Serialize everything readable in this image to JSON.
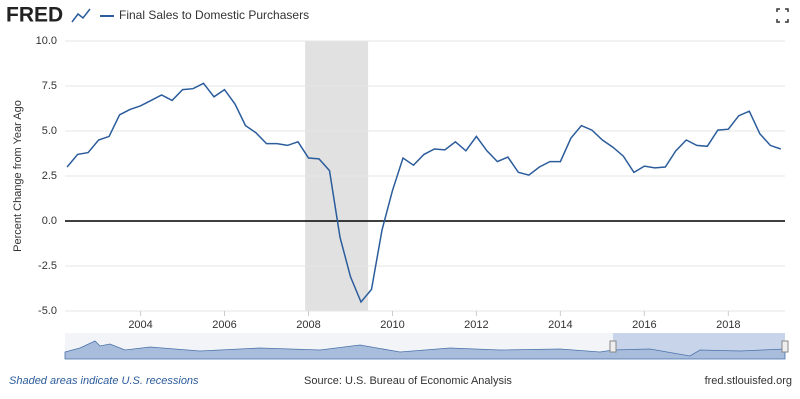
{
  "chart_data": {
    "type": "line",
    "logo": "FRED",
    "title": "Final Sales to Domestic Purchasers",
    "y_label": "Percent Change from Year Ago",
    "note": "Shaded areas indicate U.S. recessions",
    "source": "Source: U.S. Bureau of Economic Analysis",
    "site": "fred.stlouisfed.org",
    "xlim": [
      2002.2,
      2019.35
    ],
    "xticks": [
      2004,
      2006,
      2008,
      2010,
      2012,
      2014,
      2016,
      2018
    ],
    "ylim": [
      -5,
      10
    ],
    "yticks": [
      {
        "value": 10,
        "label": "10.0"
      },
      7.5,
      {
        "value": 5,
        "label": "5.0"
      },
      2.5,
      {
        "value": 0,
        "label": "0.0"
      },
      -2.5,
      {
        "value": -5,
        "label": "-5.0"
      }
    ],
    "grid": true,
    "recessions": [
      [
        2007.92,
        2009.42
      ]
    ],
    "x": [
      2002.25,
      2002.5,
      2002.75,
      2003,
      2003.25,
      2003.5,
      2003.75,
      2004,
      2004.25,
      2004.5,
      2004.75,
      2005,
      2005.25,
      2005.5,
      2005.75,
      2006,
      2006.25,
      2006.5,
      2006.75,
      2007,
      2007.25,
      2007.5,
      2007.75,
      2008,
      2008.25,
      2008.5,
      2008.75,
      2009,
      2009.25,
      2009.5,
      2009.75,
      2010,
      2010.25,
      2010.5,
      2010.75,
      2011,
      2011.25,
      2011.5,
      2011.75,
      2012,
      2012.25,
      2012.5,
      2012.75,
      2013,
      2013.25,
      2013.5,
      2013.75,
      2014,
      2014.25,
      2014.5,
      2014.75,
      2015,
      2015.25,
      2015.5,
      2015.75,
      2016,
      2016.25,
      2016.5,
      2016.75,
      2017,
      2017.25,
      2017.5,
      2017.75,
      2018,
      2018.25,
      2018.5,
      2018.75,
      2019,
      2019.25
    ],
    "series": [
      {
        "name": "Final Sales to Domestic Purchasers",
        "color": "#2b5c9b",
        "values": [
          3.0,
          3.7,
          3.8,
          4.5,
          4.7,
          5.9,
          6.2,
          6.4,
          6.7,
          7.0,
          6.7,
          7.3,
          7.35,
          7.65,
          6.9,
          7.3,
          6.5,
          5.3,
          4.9,
          4.3,
          4.3,
          4.2,
          4.4,
          3.5,
          3.45,
          2.8,
          -0.9,
          -3.1,
          -4.5,
          -3.8,
          -0.5,
          1.7,
          3.5,
          3.1,
          3.7,
          4.0,
          3.95,
          4.4,
          3.9,
          4.7,
          3.9,
          3.3,
          3.55,
          2.7,
          2.55,
          3.0,
          3.3,
          3.3,
          4.6,
          5.3,
          5.05,
          4.5,
          4.1,
          3.6,
          2.7,
          3.05,
          2.95,
          3.0,
          3.9,
          4.5,
          4.2,
          4.15,
          5.05,
          5.1,
          5.85,
          6.1,
          4.85,
          4.2,
          4.0
        ]
      }
    ]
  }
}
